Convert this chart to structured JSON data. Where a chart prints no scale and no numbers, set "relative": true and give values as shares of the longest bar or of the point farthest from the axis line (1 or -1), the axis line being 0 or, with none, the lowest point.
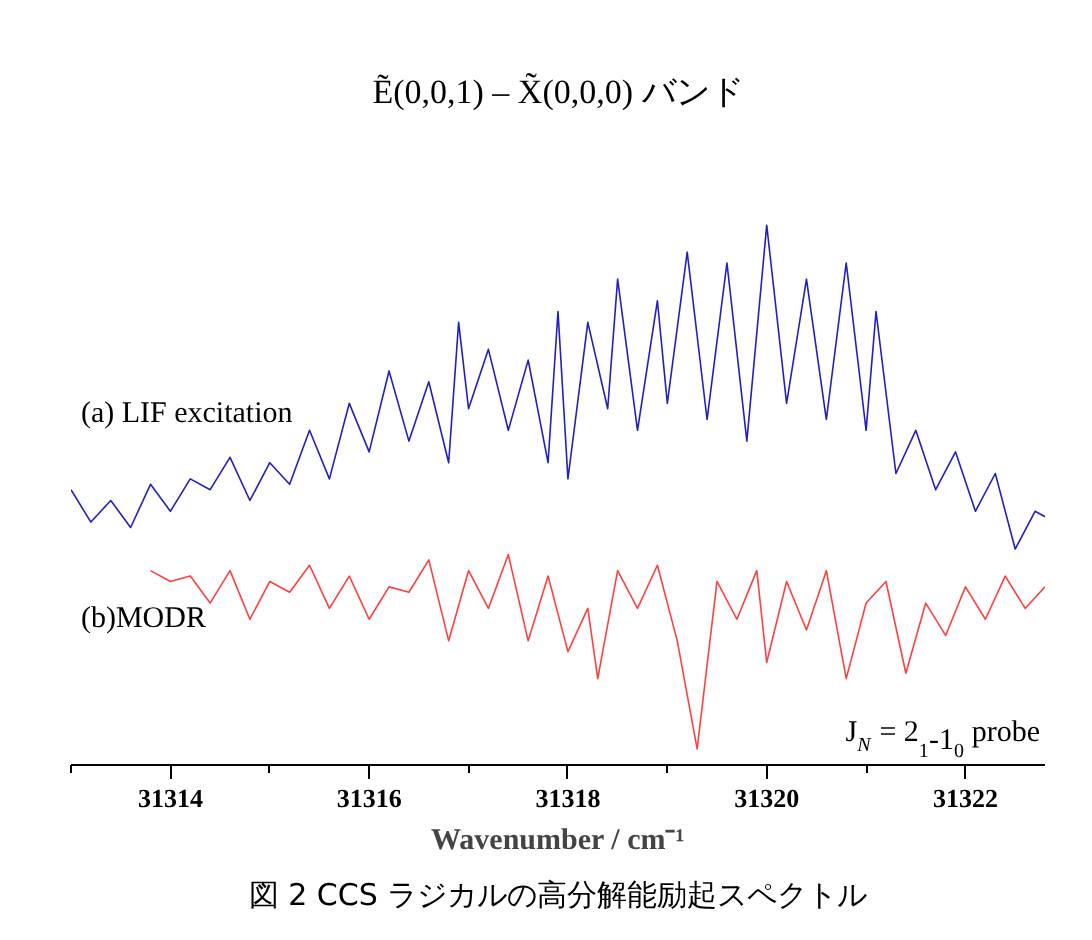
{
  "chart_data": {
    "type": "line",
    "relative": true,
    "title": "Ẽ(0,0,1) – X̃(0,0,0) バンド",
    "xlabel": "Wavenumber / cm⁻¹",
    "annotations": [
      "J$_{N}$ = 2$_{1}$-1$_{0}$ probe",
      "図 2 CCS ラジカルの高分解能励起スペクトル"
    ],
    "xlim": [
      31313,
      31322.8
    ],
    "xticks": [
      {
        "value": 31313,
        "label": null
      },
      31314,
      {
        "value": 31315,
        "label": null
      },
      31316,
      {
        "value": 31317,
        "label": null
      },
      31318,
      {
        "value": 31319,
        "label": null
      },
      31320,
      {
        "value": 31321,
        "label": null
      },
      31322
    ],
    "grid": false,
    "legend": false,
    "series": [
      {
        "name": "(a) LIF excitation",
        "color": "#2020c0",
        "x": [
          31313.0,
          31313.2,
          31313.4,
          31313.6,
          31313.8,
          31314.0,
          31314.2,
          31314.4,
          31314.6,
          31314.8,
          31315.0,
          31315.2,
          31315.4,
          31315.6,
          31315.8,
          31316.0,
          31316.2,
          31316.4,
          31316.6,
          31316.8,
          31316.9,
          31317.0,
          31317.2,
          31317.4,
          31317.6,
          31317.8,
          31317.9,
          31318.0,
          31318.2,
          31318.4,
          31318.5,
          31318.7,
          31318.9,
          31319.0,
          31319.2,
          31319.4,
          31319.6,
          31319.8,
          31320.0,
          31320.2,
          31320.4,
          31320.6,
          31320.8,
          31321.0,
          31321.1,
          31321.3,
          31321.5,
          31321.7,
          31321.9,
          31322.1,
          31322.3,
          31322.5,
          31322.7,
          31322.8
        ],
        "values": [
          0.51,
          0.45,
          0.49,
          0.44,
          0.52,
          0.47,
          0.53,
          0.51,
          0.57,
          0.49,
          0.56,
          0.52,
          0.62,
          0.53,
          0.67,
          0.58,
          0.73,
          0.6,
          0.71,
          0.56,
          0.82,
          0.66,
          0.77,
          0.62,
          0.75,
          0.56,
          0.84,
          0.53,
          0.82,
          0.66,
          0.9,
          0.62,
          0.86,
          0.67,
          0.95,
          0.64,
          0.93,
          0.6,
          1.0,
          0.67,
          0.9,
          0.64,
          0.93,
          0.62,
          0.84,
          0.54,
          0.62,
          0.51,
          0.58,
          0.47,
          0.54,
          0.4,
          0.47,
          0.46
        ]
      },
      {
        "name": "(b)MODR",
        "color": "#ff4040",
        "x": [
          31313.8,
          31314.0,
          31314.2,
          31314.4,
          31314.6,
          31314.8,
          31315.0,
          31315.2,
          31315.4,
          31315.6,
          31315.8,
          31316.0,
          31316.2,
          31316.4,
          31316.6,
          31316.8,
          31317.0,
          31317.2,
          31317.4,
          31317.6,
          31317.8,
          31318.0,
          31318.2,
          31318.3,
          31318.5,
          31318.7,
          31318.9,
          31319.1,
          31319.3,
          31319.5,
          31319.7,
          31319.9,
          31320.0,
          31320.2,
          31320.4,
          31320.6,
          31320.8,
          31321.0,
          31321.2,
          31321.4,
          31321.6,
          31321.8,
          31322.0,
          31322.2,
          31322.4,
          31322.6,
          31322.8
        ],
        "values": [
          0.36,
          0.34,
          0.35,
          0.3,
          0.36,
          0.27,
          0.34,
          0.32,
          0.37,
          0.29,
          0.35,
          0.27,
          0.33,
          0.32,
          0.38,
          0.23,
          0.36,
          0.29,
          0.39,
          0.23,
          0.35,
          0.21,
          0.29,
          0.16,
          0.36,
          0.29,
          0.37,
          0.23,
          0.03,
          0.34,
          0.27,
          0.36,
          0.19,
          0.34,
          0.25,
          0.36,
          0.16,
          0.3,
          0.34,
          0.17,
          0.3,
          0.24,
          0.33,
          0.27,
          0.35,
          0.29,
          0.33
        ]
      }
    ]
  }
}
